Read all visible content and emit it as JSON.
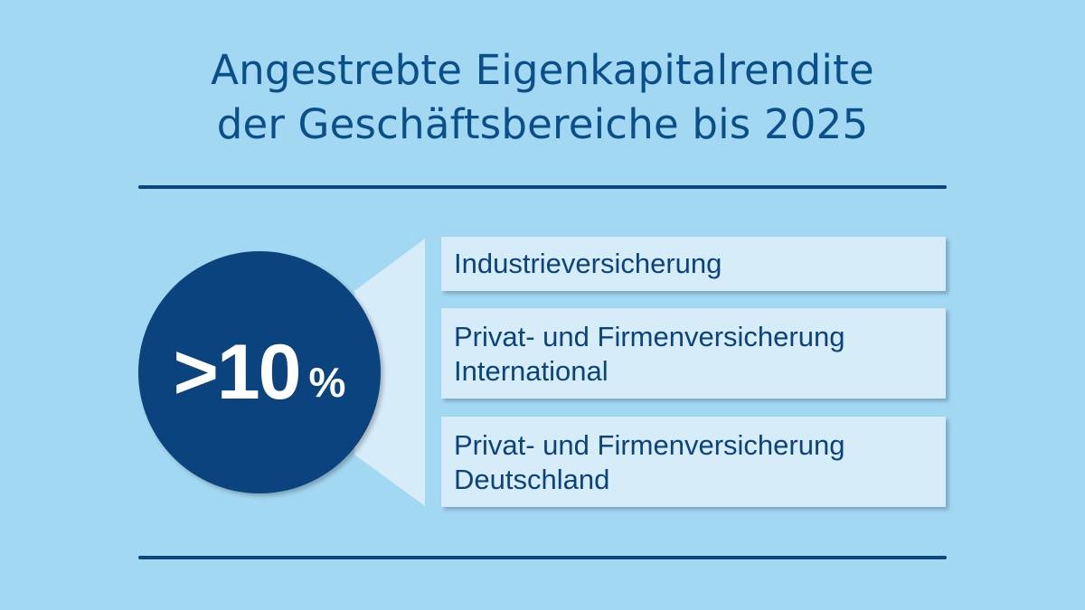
{
  "title": {
    "line1": "Angestrebte Eigenkapitalrendite",
    "line2": "der Geschäftsbereiche bis 2025"
  },
  "target": {
    "value": ">10",
    "unit": "%"
  },
  "segments": [
    {
      "line1": "Industrieversicherung"
    },
    {
      "line1": "Privat- und Firmenversicherung",
      "line2": "International"
    },
    {
      "line1": "Privat- und Firmenversicherung",
      "line2": "Deutschland"
    }
  ],
  "colors": {
    "background": "#a3d8f2",
    "primary": "#0a437d",
    "title": "#0a4f8a",
    "box": "#d6ecf9",
    "beam": "#d6ecf9"
  }
}
